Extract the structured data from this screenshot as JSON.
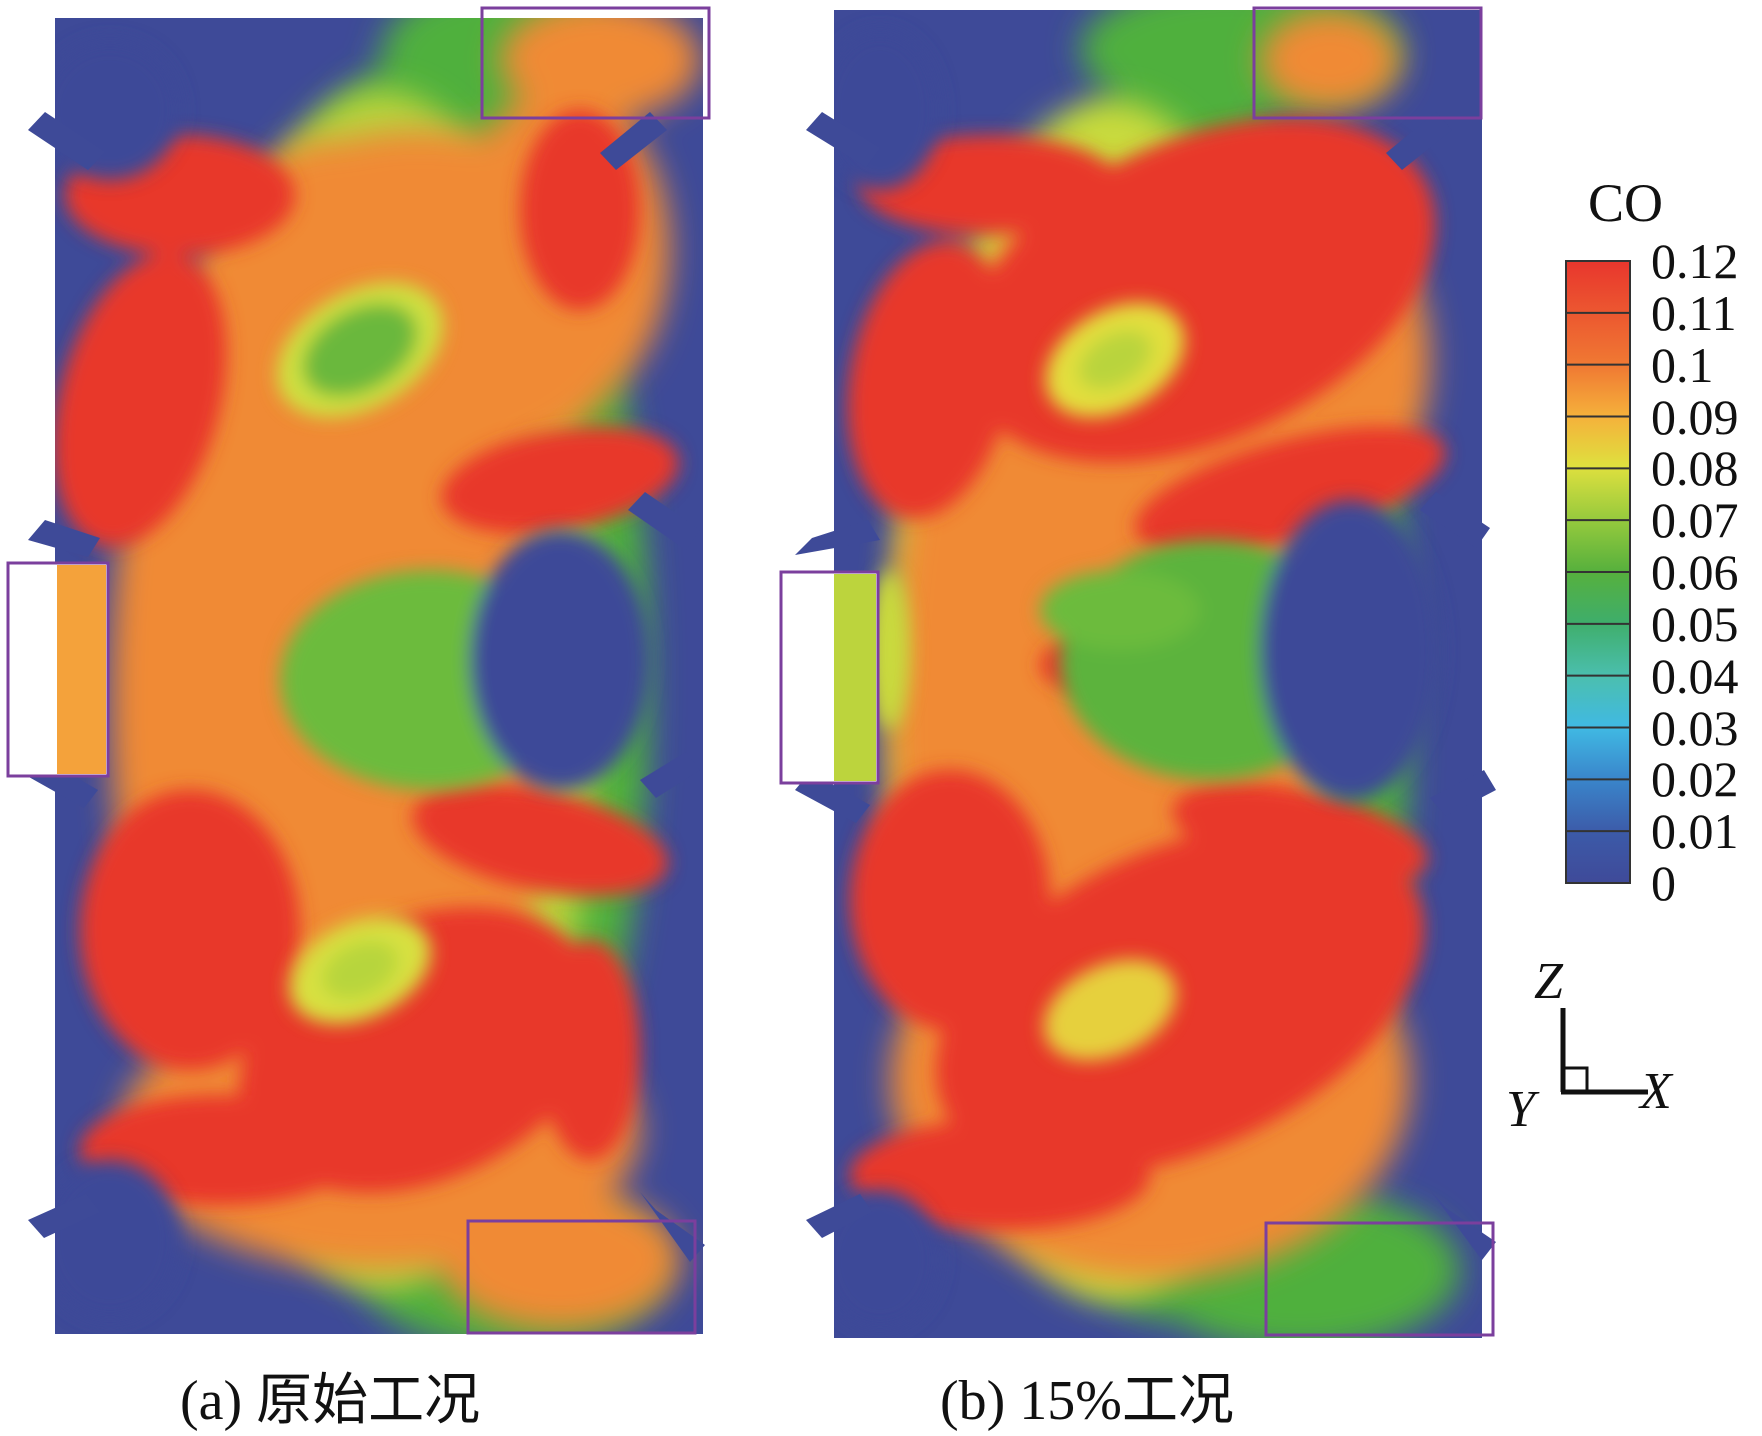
{
  "panels": [
    {
      "id": "a",
      "caption": "(a) 原始工况"
    },
    {
      "id": "b",
      "caption": "(b) 15%工况"
    }
  ],
  "legend": {
    "title": "CO",
    "ticks": [
      "0.12",
      "0.11",
      "0.1",
      "0.09",
      "0.08",
      "0.07",
      "0.06",
      "0.05",
      "0.04",
      "0.03",
      "0.02",
      "0.01",
      "0"
    ],
    "colors": [
      "#e8362d",
      "#eb4f2e",
      "#f07a33",
      "#f5a23a",
      "#e6d43c",
      "#b9d63c",
      "#7cc13d",
      "#4aa83d",
      "#3fae5e",
      "#4bbfa8",
      "#3fb7dd",
      "#3c76bf",
      "#3f4f9f"
    ]
  },
  "axes": {
    "z": "Z",
    "x": "X",
    "y": "Y"
  },
  "colors": {
    "low": "#3e4a98",
    "high": "#e8372c",
    "box": "#7b3f9d"
  }
}
